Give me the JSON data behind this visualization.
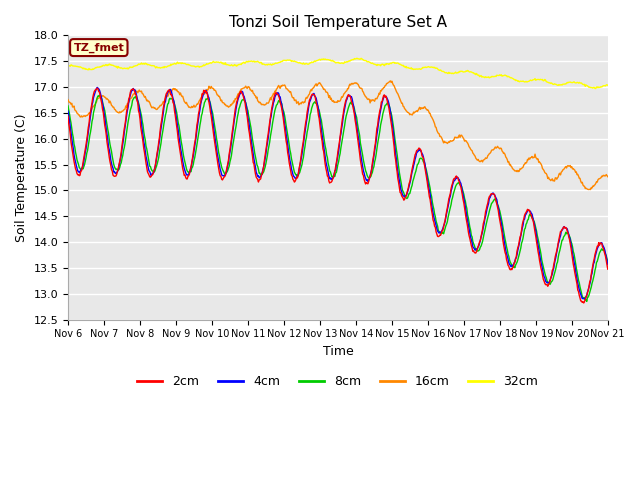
{
  "title": "Tonzi Soil Temperature Set A",
  "xlabel": "Time",
  "ylabel": "Soil Temperature (C)",
  "ylim": [
    12.5,
    18.0
  ],
  "yticks": [
    12.5,
    13.0,
    13.5,
    14.0,
    14.5,
    15.0,
    15.5,
    16.0,
    16.5,
    17.0,
    17.5,
    18.0
  ],
  "fig_bg_color": "#ffffff",
  "plot_bg_color": "#e8e8e8",
  "legend_label": "TZ_fmet",
  "legend_box_color": "#ffffcc",
  "legend_box_border": "#880000",
  "series_colors": {
    "2cm": "#ff0000",
    "4cm": "#0000ff",
    "8cm": "#00cc00",
    "16cm": "#ff8800",
    "32cm": "#ffff00"
  },
  "xtick_labels": [
    "Nov 6",
    "Nov 7",
    "Nov 8",
    "Nov 9",
    "Nov 10",
    "Nov 11",
    "Nov 12",
    "Nov 13",
    "Nov 14",
    "Nov 15",
    "Nov 16",
    "Nov 17",
    "Nov 18",
    "Nov 19",
    "Nov 20",
    "Nov 21"
  ],
  "n_days": 15,
  "pts_per_day": 48
}
